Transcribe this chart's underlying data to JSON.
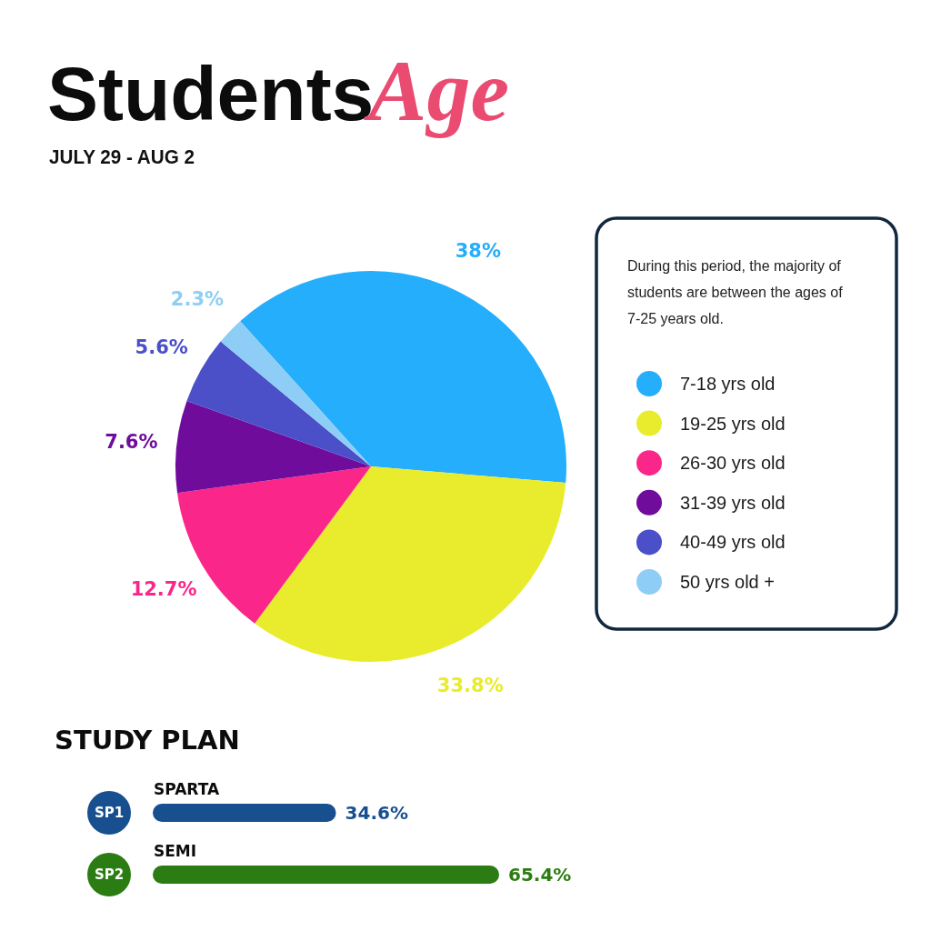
{
  "chart_data": [
    {
      "type": "pie",
      "title": "StudentsAge",
      "subtitle": "JULY 29 - AUG 2",
      "categories": [
        "7-18 yrs old",
        "19-25 yrs old",
        "26-30 yrs old",
        "31-39 yrs old",
        "40-49 yrs old",
        "50 yrs old +"
      ],
      "values": [
        38,
        33.8,
        12.7,
        7.6,
        5.6,
        2.3
      ],
      "colors": [
        "#25aefb",
        "#e8ec2c",
        "#fb2689",
        "#6f0c9c",
        "#4b4fc8",
        "#8ecef6"
      ],
      "value_labels": [
        "38%",
        "33.8%",
        "12.7%",
        "7.6%",
        "5.6%",
        "2.3%"
      ],
      "legend": "right",
      "annotations": [
        "During this period, the majority of students are between the ages of 7-25 years old."
      ]
    },
    {
      "type": "bar",
      "orientation": "horizontal",
      "title": "STUDY PLAN",
      "categories": [
        "SPARTA",
        "SEMI"
      ],
      "values": [
        34.6,
        65.4
      ],
      "colors": [
        "#184f8f",
        "#2b7c12"
      ],
      "value_labels": [
        "34.6%",
        "65.4%"
      ],
      "annotations": [
        "SP1",
        "SP2"
      ]
    }
  ]
}
